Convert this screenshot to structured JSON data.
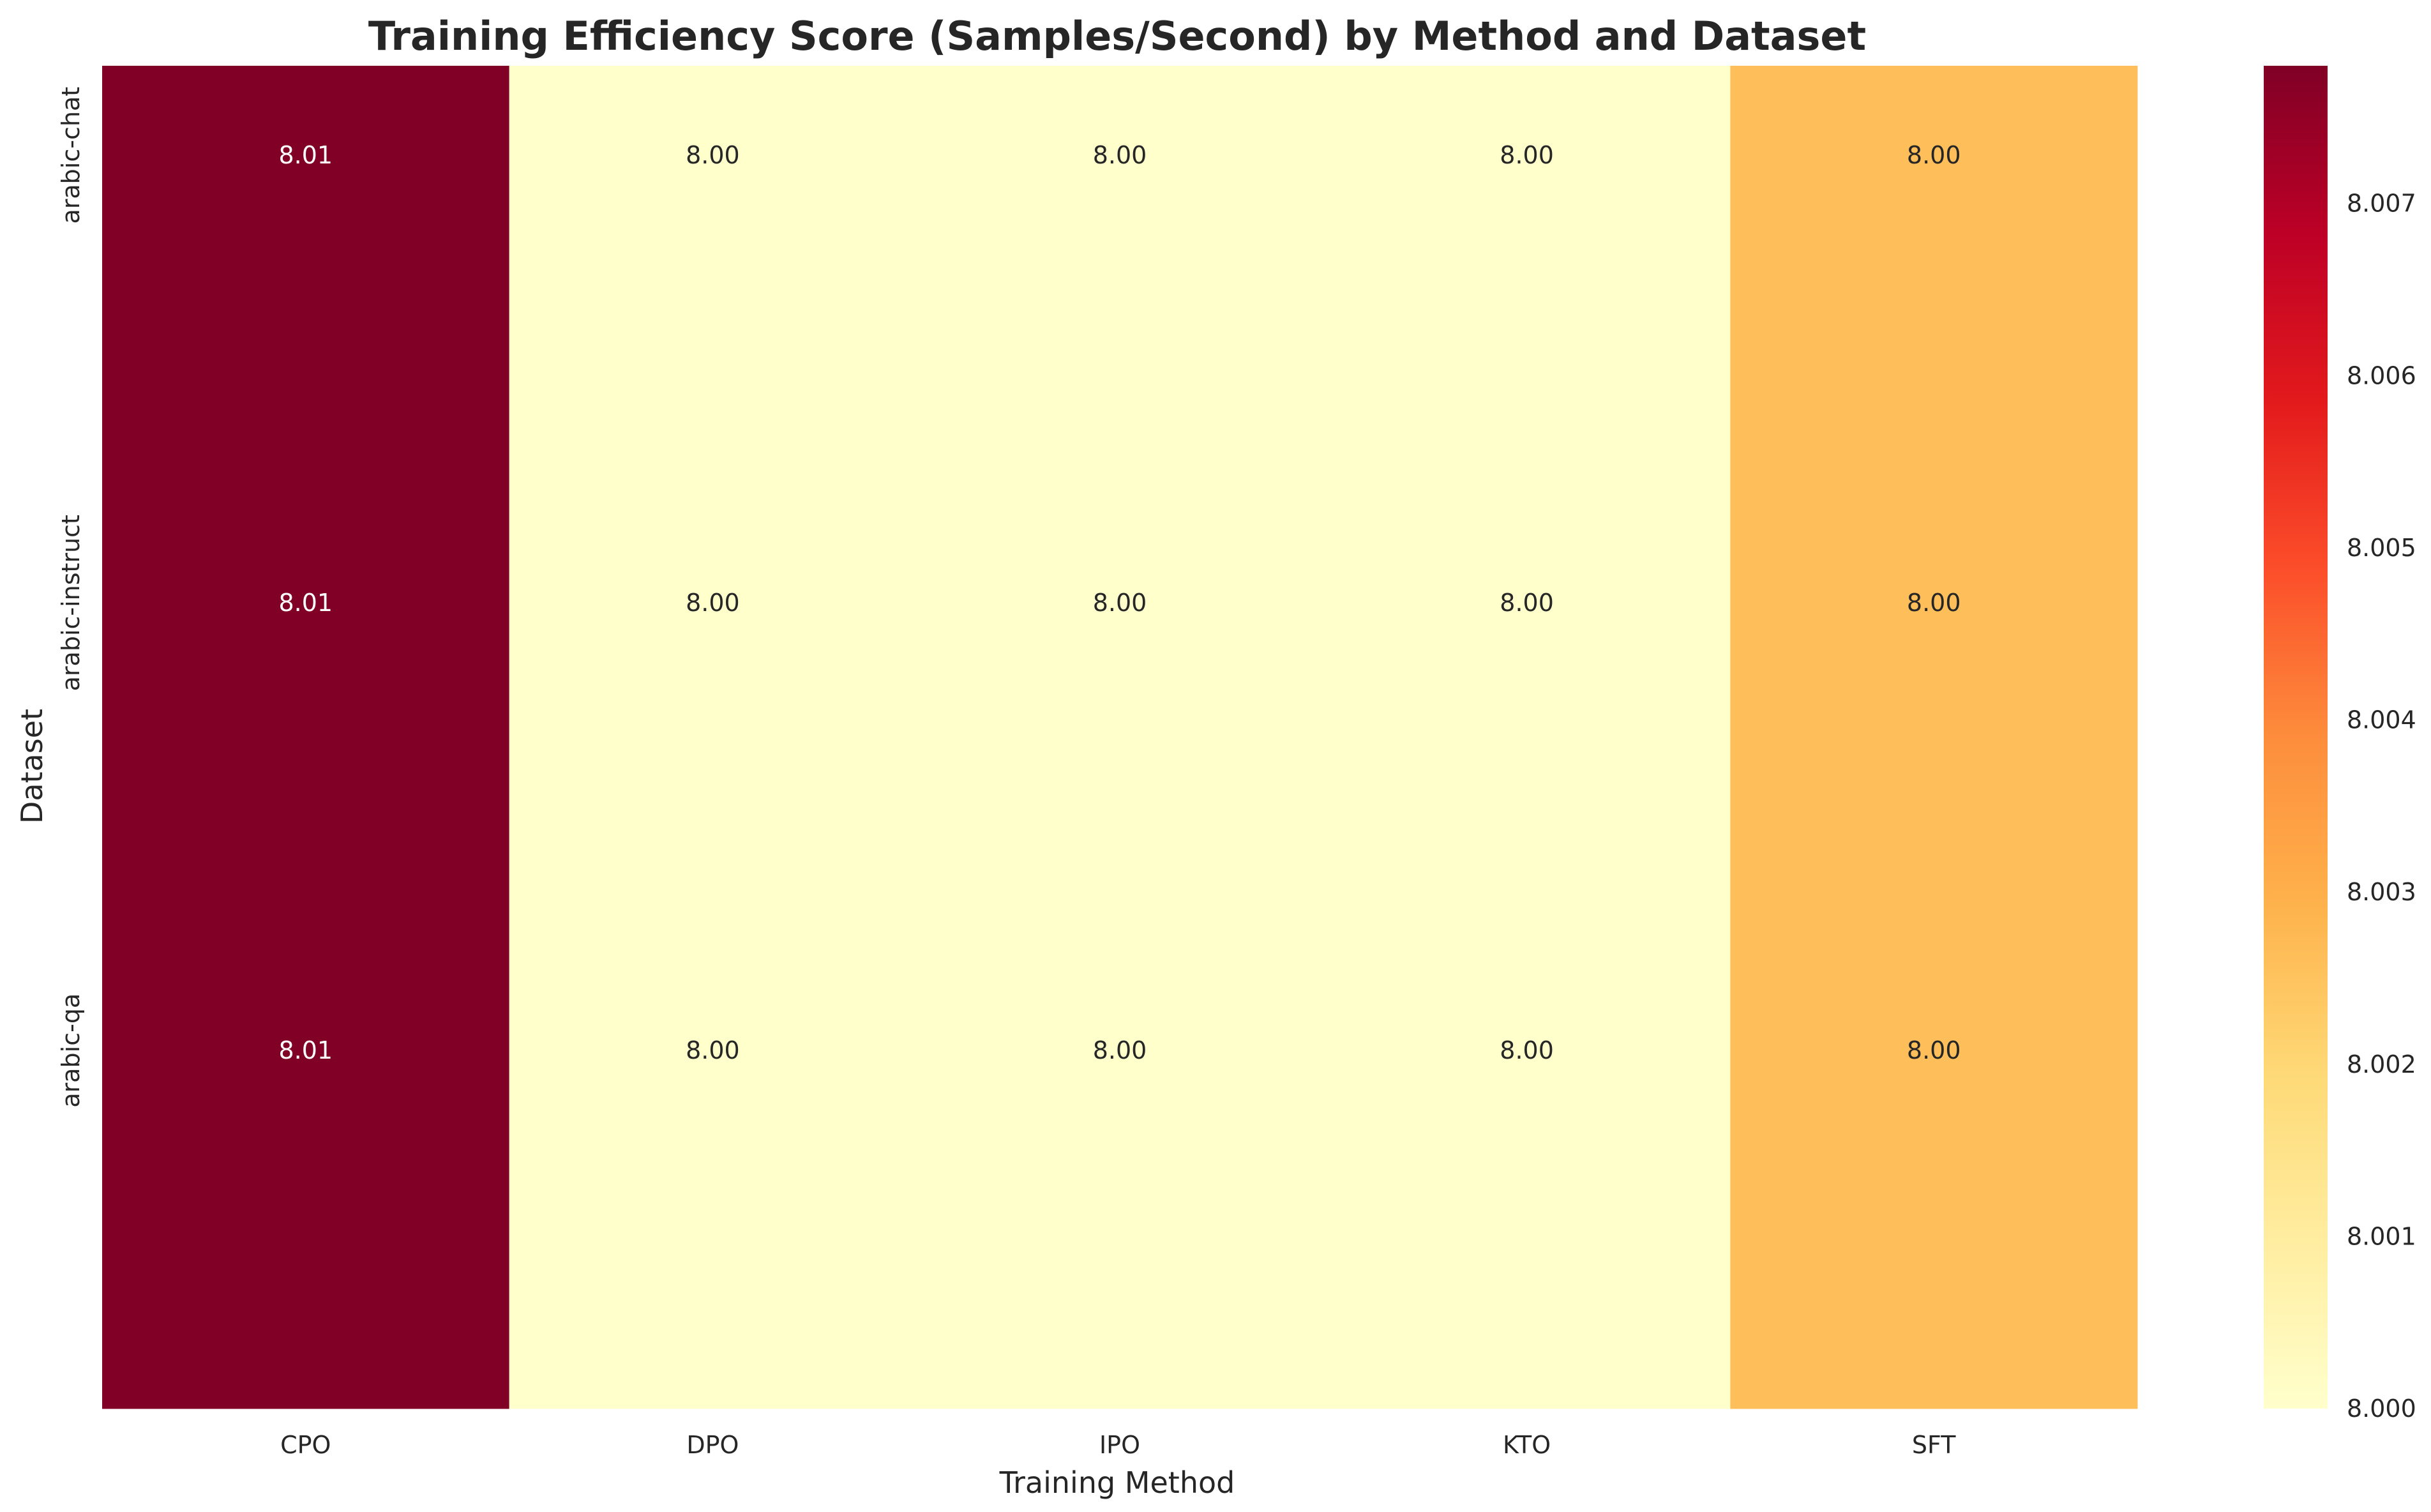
{
  "chart_data": {
    "type": "heatmap",
    "title": "Training Efficiency Score (Samples/Second) by Method and Dataset",
    "xlabel": "Training Method",
    "ylabel": "Dataset",
    "x_categories": [
      "CPO",
      "DPO",
      "IPO",
      "KTO",
      "SFT"
    ],
    "y_categories": [
      "arabic-chat",
      "arabic-instruct",
      "arabic-qa"
    ],
    "values": [
      [
        8.0078,
        8.0,
        8.0,
        8.0,
        8.0026
      ],
      [
        8.0078,
        8.0,
        8.0,
        8.0,
        8.0026
      ],
      [
        8.0078,
        8.0,
        8.0,
        8.0,
        8.0026
      ]
    ],
    "cell_labels": [
      [
        "8.01",
        "8.00",
        "8.00",
        "8.00",
        "8.00"
      ],
      [
        "8.01",
        "8.00",
        "8.00",
        "8.00",
        "8.00"
      ],
      [
        "8.01",
        "8.00",
        "8.00",
        "8.00",
        "8.00"
      ]
    ],
    "colormap": "YlOrRd",
    "colorbar_range": [
      8.0,
      8.0078
    ],
    "colorbar_ticks": [
      "8.000",
      "8.001",
      "8.002",
      "8.003",
      "8.004",
      "8.005",
      "8.006",
      "8.007"
    ],
    "colorbar_tick_values": [
      8.0,
      8.001,
      8.002,
      8.003,
      8.004,
      8.005,
      8.006,
      8.007
    ],
    "grid": false,
    "colorbar_position": "right"
  }
}
